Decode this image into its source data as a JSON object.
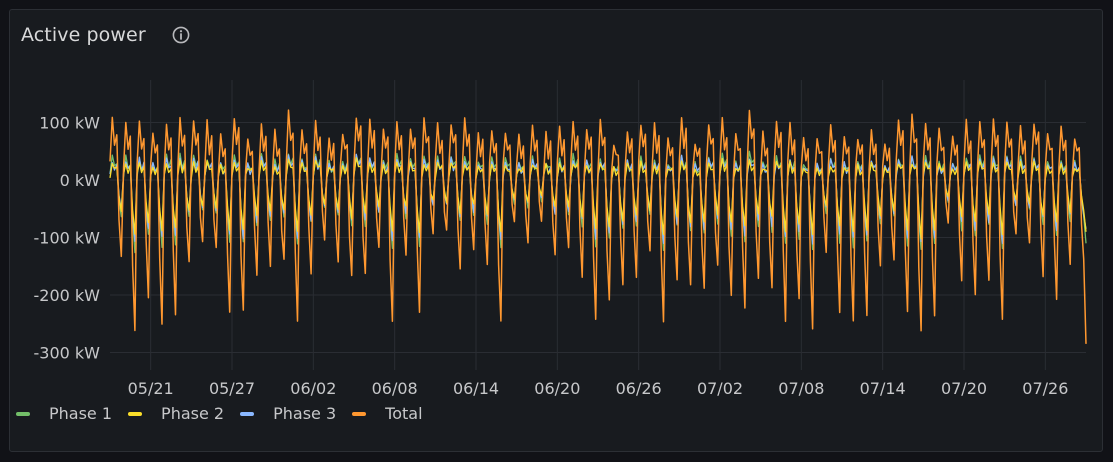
{
  "panel": {
    "title": "Active power",
    "info_icon": "info-circle-icon"
  },
  "colors": {
    "background": "#111217",
    "panel": "#181b1f",
    "grid": "#2a2d33",
    "text": "#c7c8ca"
  },
  "chart_data": {
    "type": "line",
    "title": "Active power",
    "x_unit": "date",
    "x_range": [
      "2025-05-18",
      "2025-07-29"
    ],
    "x_ticks": [
      "05/21",
      "05/27",
      "06/02",
      "06/08",
      "06/14",
      "06/20",
      "06/26",
      "07/02",
      "07/08",
      "07/14",
      "07/20",
      "07/26"
    ],
    "y_unit": "kW",
    "y_ticks": [
      100,
      0,
      -100,
      -200,
      -300
    ],
    "y_tick_labels": [
      "100 kW",
      "0 kW",
      "-100 kW",
      "-200 kW",
      "-300 kW"
    ],
    "ylim": [
      -340,
      170
    ],
    "grid": true,
    "legend_position": "bottom-left",
    "samples_per_day": 6,
    "series": [
      {
        "name": "Phase 1",
        "color": "#73bf69",
        "daily_peak_kw": 40,
        "daily_trough_kw": -90,
        "last_kw": -110
      },
      {
        "name": "Phase 2",
        "color": "#fade2a",
        "daily_peak_kw": 30,
        "daily_trough_kw": -70,
        "last_kw": -90
      },
      {
        "name": "Phase 3",
        "color": "#8ab8ff",
        "daily_peak_kw": 35,
        "daily_trough_kw": -80,
        "last_kw": -85
      },
      {
        "name": "Total",
        "color": "#ff9830",
        "daily_peak_kw": 90,
        "daily_trough_kw": -170,
        "max_kw": 125,
        "min_kw": -285,
        "last_kw": -285
      }
    ]
  },
  "legend": [
    {
      "label": "Phase 1",
      "color": "#73bf69"
    },
    {
      "label": "Phase 2",
      "color": "#fade2a"
    },
    {
      "label": "Phase 3",
      "color": "#8ab8ff"
    },
    {
      "label": "Total",
      "color": "#ff9830"
    }
  ]
}
